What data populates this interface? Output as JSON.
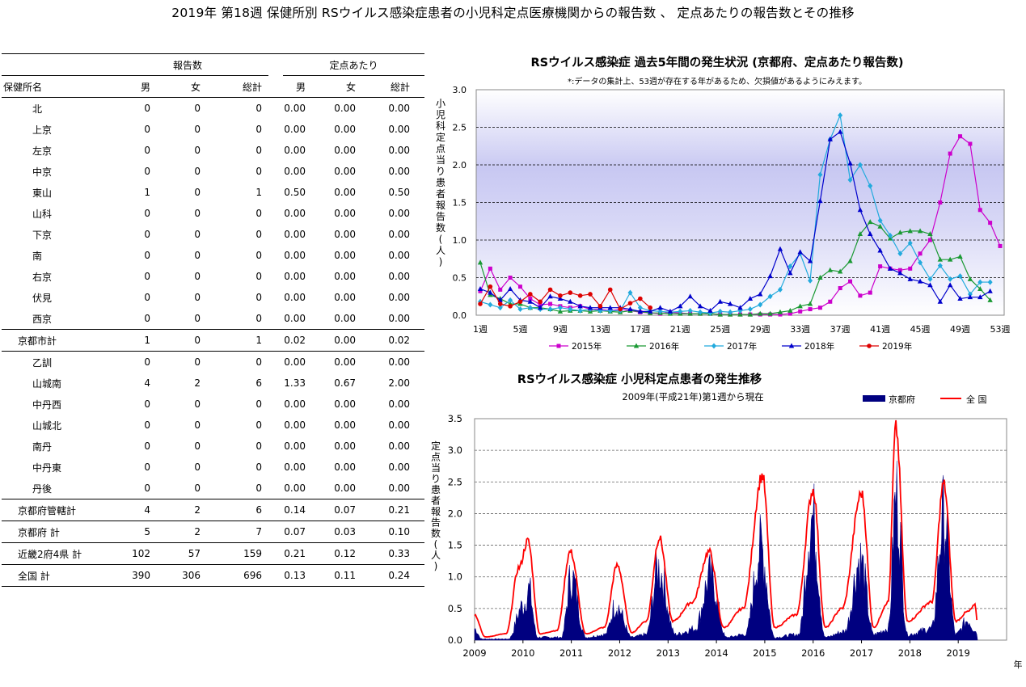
{
  "page_title": "2019年 第18週 保健所別 RSウイルス感染症患者の小児科定点医療機関からの報告数 、 定点あたりの報告数とその推移",
  "table": {
    "group_headers": [
      "報告数",
      "定点あたり"
    ],
    "col_name": "保健所名",
    "sub_headers": [
      "男",
      "女",
      "総計",
      "男",
      "女",
      "総計"
    ],
    "rows": [
      {
        "name": "北",
        "v": [
          "0",
          "0",
          "0",
          "0.00",
          "0.00",
          "0.00"
        ]
      },
      {
        "name": "上京",
        "v": [
          "0",
          "0",
          "0",
          "0.00",
          "0.00",
          "0.00"
        ]
      },
      {
        "name": "左京",
        "v": [
          "0",
          "0",
          "0",
          "0.00",
          "0.00",
          "0.00"
        ]
      },
      {
        "name": "中京",
        "v": [
          "0",
          "0",
          "0",
          "0.00",
          "0.00",
          "0.00"
        ]
      },
      {
        "name": "東山",
        "v": [
          "1",
          "0",
          "1",
          "0.50",
          "0.00",
          "0.50"
        ]
      },
      {
        "name": "山科",
        "v": [
          "0",
          "0",
          "0",
          "0.00",
          "0.00",
          "0.00"
        ]
      },
      {
        "name": "下京",
        "v": [
          "0",
          "0",
          "0",
          "0.00",
          "0.00",
          "0.00"
        ]
      },
      {
        "name": "南",
        "v": [
          "0",
          "0",
          "0",
          "0.00",
          "0.00",
          "0.00"
        ]
      },
      {
        "name": "右京",
        "v": [
          "0",
          "0",
          "0",
          "0.00",
          "0.00",
          "0.00"
        ]
      },
      {
        "name": "伏見",
        "v": [
          "0",
          "0",
          "0",
          "0.00",
          "0.00",
          "0.00"
        ]
      },
      {
        "name": "西京",
        "v": [
          "0",
          "0",
          "0",
          "0.00",
          "0.00",
          "0.00"
        ]
      },
      {
        "name": "京都市計",
        "v": [
          "1",
          "0",
          "1",
          "0.02",
          "0.00",
          "0.02"
        ],
        "total": true
      },
      {
        "name": "乙訓",
        "v": [
          "0",
          "0",
          "0",
          "0.00",
          "0.00",
          "0.00"
        ]
      },
      {
        "name": "山城南",
        "v": [
          "4",
          "2",
          "6",
          "1.33",
          "0.67",
          "2.00"
        ]
      },
      {
        "name": "中丹西",
        "v": [
          "0",
          "0",
          "0",
          "0.00",
          "0.00",
          "0.00"
        ]
      },
      {
        "name": "山城北",
        "v": [
          "0",
          "0",
          "0",
          "0.00",
          "0.00",
          "0.00"
        ]
      },
      {
        "name": "南丹",
        "v": [
          "0",
          "0",
          "0",
          "0.00",
          "0.00",
          "0.00"
        ]
      },
      {
        "name": "中丹東",
        "v": [
          "0",
          "0",
          "0",
          "0.00",
          "0.00",
          "0.00"
        ]
      },
      {
        "name": "丹後",
        "v": [
          "0",
          "0",
          "0",
          "0.00",
          "0.00",
          "0.00"
        ]
      },
      {
        "name": "京都府管轄計",
        "v": [
          "4",
          "2",
          "6",
          "0.14",
          "0.07",
          "0.21"
        ],
        "total": true
      },
      {
        "name": "京都府  計",
        "v": [
          "5",
          "2",
          "7",
          "0.07",
          "0.03",
          "0.10"
        ],
        "total": true
      },
      {
        "name": "近畿2府4県  計",
        "v": [
          "102",
          "57",
          "159",
          "0.21",
          "0.12",
          "0.33"
        ],
        "total": true
      },
      {
        "name": "全国  計",
        "v": [
          "390",
          "306",
          "696",
          "0.13",
          "0.11",
          "0.24"
        ],
        "total": true
      }
    ]
  },
  "chart_data": [
    {
      "type": "line",
      "title": "RSウイルス感染症  過去5年間の発生状況 (京都府、定点あたり報告数)",
      "subtitle": "*:データの集計上、53週が存在する年があるため、欠損値があるようにみえます。",
      "ylabel": "小児科定点当り患者報告数(人)",
      "ylim": [
        0,
        3.0
      ],
      "yticks": [
        "0.0",
        "0.5",
        "1.0",
        "1.5",
        "2.0",
        "2.5",
        "3.0"
      ],
      "xticks": [
        "1週",
        "5週",
        "9週",
        "13週",
        "17週",
        "21週",
        "25週",
        "29週",
        "33週",
        "37週",
        "41週",
        "45週",
        "49週",
        "53週"
      ],
      "legend_position": "bottom",
      "colors": {
        "2015年": "#cc00cc",
        "2016年": "#1a9933",
        "2017年": "#22aadd",
        "2018年": "#0000cc",
        "2019年": "#dd0000"
      },
      "series": [
        {
          "name": "2015年",
          "x": [
            1,
            2,
            3,
            4,
            5,
            6,
            7,
            8,
            9,
            10,
            11,
            12,
            13,
            14,
            15,
            16,
            17,
            18,
            19,
            20,
            21,
            22,
            23,
            24,
            25,
            26,
            27,
            28,
            29,
            30,
            31,
            32,
            33,
            34,
            35,
            36,
            37,
            38,
            39,
            40,
            41,
            42,
            43,
            44,
            45,
            46,
            47,
            48,
            49,
            50,
            51,
            52,
            53
          ],
          "values": [
            0.32,
            0.62,
            0.34,
            0.5,
            0.38,
            0.22,
            0.14,
            0.15,
            0.12,
            0.1,
            0.12,
            0.08,
            0.08,
            0.06,
            0.08,
            0.06,
            0.04,
            0.03,
            0.02,
            0.04,
            0.03,
            0.02,
            0.02,
            0.02,
            0.01,
            0.01,
            0.01,
            0.01,
            0.01,
            0.01,
            0.01,
            0.02,
            0.05,
            0.08,
            0.1,
            0.18,
            0.36,
            0.45,
            0.26,
            0.3,
            0.65,
            0.62,
            0.6,
            0.62,
            0.82,
            1.0,
            1.5,
            2.15,
            2.38,
            2.28,
            1.4,
            1.23,
            0.92
          ]
        },
        {
          "name": "2016年",
          "x": [
            1,
            2,
            3,
            4,
            5,
            6,
            7,
            8,
            9,
            10,
            11,
            12,
            13,
            14,
            15,
            16,
            17,
            18,
            19,
            20,
            21,
            22,
            23,
            24,
            25,
            26,
            27,
            28,
            29,
            30,
            31,
            32,
            33,
            34,
            35,
            36,
            37,
            38,
            39,
            40,
            41,
            42,
            43,
            44,
            45,
            46,
            47,
            48,
            49,
            50,
            51,
            52
          ],
          "values": [
            0.7,
            0.27,
            0.22,
            0.15,
            0.15,
            0.1,
            0.1,
            0.08,
            0.05,
            0.06,
            0.06,
            0.05,
            0.06,
            0.05,
            0.04,
            0.06,
            0.05,
            0.03,
            0.03,
            0.02,
            0.02,
            0.02,
            0.02,
            0.02,
            0.01,
            0.01,
            0.01,
            0.01,
            0.02,
            0.02,
            0.04,
            0.06,
            0.12,
            0.15,
            0.5,
            0.6,
            0.58,
            0.72,
            1.08,
            1.24,
            1.18,
            1.02,
            1.1,
            1.12,
            1.12,
            1.08,
            0.74,
            0.74,
            0.78,
            0.48,
            0.35,
            0.2
          ]
        },
        {
          "name": "2017年",
          "x": [
            1,
            2,
            3,
            4,
            5,
            6,
            7,
            8,
            9,
            10,
            11,
            12,
            13,
            14,
            15,
            16,
            17,
            18,
            19,
            20,
            21,
            22,
            23,
            24,
            25,
            26,
            27,
            28,
            29,
            30,
            31,
            32,
            33,
            34,
            35,
            36,
            37,
            38,
            39,
            40,
            41,
            42,
            43,
            44,
            45,
            46,
            47,
            48,
            49,
            50,
            51,
            52
          ],
          "values": [
            0.18,
            0.14,
            0.1,
            0.2,
            0.08,
            0.1,
            0.08,
            0.08,
            0.1,
            0.08,
            0.06,
            0.08,
            0.06,
            0.06,
            0.06,
            0.3,
            0.1,
            0.06,
            0.05,
            0.04,
            0.05,
            0.06,
            0.04,
            0.03,
            0.05,
            0.04,
            0.06,
            0.08,
            0.14,
            0.25,
            0.34,
            0.65,
            0.82,
            0.46,
            1.87,
            2.34,
            2.66,
            1.8,
            2.0,
            1.72,
            1.26,
            1.06,
            0.82,
            0.96,
            0.7,
            0.48,
            0.66,
            0.48,
            0.52,
            0.28,
            0.44,
            0.44
          ]
        },
        {
          "name": "2018年",
          "x": [
            1,
            2,
            3,
            4,
            5,
            6,
            7,
            8,
            9,
            10,
            11,
            12,
            13,
            14,
            15,
            16,
            17,
            18,
            19,
            20,
            21,
            22,
            23,
            24,
            25,
            26,
            27,
            28,
            29,
            30,
            31,
            32,
            33,
            34,
            35,
            36,
            37,
            38,
            39,
            40,
            41,
            42,
            43,
            44,
            45,
            46,
            47,
            48,
            49,
            50,
            51,
            52
          ],
          "values": [
            0.35,
            0.3,
            0.2,
            0.35,
            0.2,
            0.18,
            0.1,
            0.25,
            0.22,
            0.18,
            0.12,
            0.1,
            0.1,
            0.1,
            0.1,
            0.08,
            0.05,
            0.05,
            0.1,
            0.05,
            0.12,
            0.25,
            0.12,
            0.06,
            0.18,
            0.15,
            0.1,
            0.22,
            0.28,
            0.52,
            0.88,
            0.56,
            0.84,
            0.72,
            1.52,
            2.34,
            2.44,
            2.02,
            1.4,
            1.08,
            0.86,
            0.62,
            0.56,
            0.48,
            0.45,
            0.4,
            0.18,
            0.4,
            0.22,
            0.24,
            0.24,
            0.32
          ]
        },
        {
          "name": "2019年",
          "x": [
            1,
            2,
            3,
            4,
            5,
            6,
            7,
            8,
            9,
            10,
            11,
            12,
            13,
            14,
            15,
            16,
            17,
            18
          ],
          "values": [
            0.15,
            0.38,
            0.15,
            0.12,
            0.18,
            0.28,
            0.18,
            0.34,
            0.26,
            0.3,
            0.26,
            0.28,
            0.12,
            0.34,
            0.08,
            0.16,
            0.22,
            0.1
          ]
        }
      ]
    },
    {
      "type": "area",
      "title": "RSウイルス感染症  小児科定点患者の発生推移",
      "subtitle": "2009年(平成21年)第1週から現在",
      "ylabel": "定点当り患者報告数(人)",
      "xlabel": "年",
      "ylim": [
        0,
        3.5
      ],
      "yticks": [
        "0.0",
        "0.5",
        "1.0",
        "1.5",
        "2.0",
        "2.5",
        "3.0",
        "3.5"
      ],
      "xlim": [
        2009,
        2020.0
      ],
      "xticks": [
        "2009",
        "2010",
        "2011",
        "2012",
        "2013",
        "2014",
        "2015",
        "2016",
        "2017",
        "2018",
        "2019"
      ],
      "legend_position": "top-right",
      "colors": {
        "京都府": "#000080",
        "全 国": "#ff0000"
      },
      "legend": [
        "京都府",
        "全 国"
      ],
      "national_peaks": [
        {
          "x": 2009.0,
          "y": 0.4
        },
        {
          "x": 2009.22,
          "y": 0.05
        },
        {
          "x": 2009.65,
          "y": 0.1
        },
        {
          "x": 2009.92,
          "y": 1.15
        },
        {
          "x": 2010.1,
          "y": 1.57
        },
        {
          "x": 2010.35,
          "y": 0.1
        },
        {
          "x": 2010.7,
          "y": 0.15
        },
        {
          "x": 2010.98,
          "y": 1.4
        },
        {
          "x": 2011.3,
          "y": 0.1
        },
        {
          "x": 2011.68,
          "y": 0.2
        },
        {
          "x": 2011.95,
          "y": 1.18
        },
        {
          "x": 2012.25,
          "y": 0.12
        },
        {
          "x": 2012.55,
          "y": 0.3
        },
        {
          "x": 2012.82,
          "y": 1.62
        },
        {
          "x": 2013.1,
          "y": 0.3
        },
        {
          "x": 2013.5,
          "y": 0.6
        },
        {
          "x": 2013.85,
          "y": 1.4
        },
        {
          "x": 2014.15,
          "y": 0.2
        },
        {
          "x": 2014.55,
          "y": 0.5
        },
        {
          "x": 2014.95,
          "y": 2.6
        },
        {
          "x": 2015.2,
          "y": 0.2
        },
        {
          "x": 2015.65,
          "y": 0.4
        },
        {
          "x": 2016.0,
          "y": 2.37
        },
        {
          "x": 2016.25,
          "y": 0.2
        },
        {
          "x": 2016.6,
          "y": 0.5
        },
        {
          "x": 2017.0,
          "y": 2.32
        },
        {
          "x": 2017.25,
          "y": 0.2
        },
        {
          "x": 2017.55,
          "y": 0.6
        },
        {
          "x": 2017.71,
          "y": 3.35
        },
        {
          "x": 2017.95,
          "y": 0.3
        },
        {
          "x": 2018.45,
          "y": 0.6
        },
        {
          "x": 2018.7,
          "y": 2.47
        },
        {
          "x": 2018.95,
          "y": 0.3
        },
        {
          "x": 2019.2,
          "y": 0.45
        },
        {
          "x": 2019.35,
          "y": 0.55
        },
        {
          "x": 2019.4,
          "y": 0.25
        }
      ],
      "kyoto_peaks": [
        {
          "x": 2009.0,
          "y": 0.2
        },
        {
          "x": 2009.15,
          "y": 0.02
        },
        {
          "x": 2009.7,
          "y": 0.02
        },
        {
          "x": 2010.0,
          "y": 0.6
        },
        {
          "x": 2010.12,
          "y": 0.88
        },
        {
          "x": 2010.3,
          "y": 0.05
        },
        {
          "x": 2010.8,
          "y": 0.05
        },
        {
          "x": 2011.0,
          "y": 1.1
        },
        {
          "x": 2011.3,
          "y": 0.05
        },
        {
          "x": 2011.7,
          "y": 0.1
        },
        {
          "x": 2011.92,
          "y": 0.62
        },
        {
          "x": 2012.25,
          "y": 0.05
        },
        {
          "x": 2012.55,
          "y": 0.1
        },
        {
          "x": 2012.8,
          "y": 1.25
        },
        {
          "x": 2013.15,
          "y": 0.1
        },
        {
          "x": 2013.55,
          "y": 0.2
        },
        {
          "x": 2013.88,
          "y": 1.12
        },
        {
          "x": 2014.2,
          "y": 0.05
        },
        {
          "x": 2014.6,
          "y": 0.1
        },
        {
          "x": 2014.92,
          "y": 1.62
        },
        {
          "x": 2015.2,
          "y": 0.05
        },
        {
          "x": 2015.7,
          "y": 0.1
        },
        {
          "x": 2015.98,
          "y": 2.15
        },
        {
          "x": 2016.25,
          "y": 0.05
        },
        {
          "x": 2016.65,
          "y": 0.15
        },
        {
          "x": 2016.97,
          "y": 1.4
        },
        {
          "x": 2017.25,
          "y": 0.1
        },
        {
          "x": 2017.55,
          "y": 0.2
        },
        {
          "x": 2017.72,
          "y": 2.5
        },
        {
          "x": 2017.95,
          "y": 0.1
        },
        {
          "x": 2018.45,
          "y": 0.2
        },
        {
          "x": 2018.7,
          "y": 2.15
        },
        {
          "x": 2018.95,
          "y": 0.1
        },
        {
          "x": 2019.2,
          "y": 0.35
        },
        {
          "x": 2019.33,
          "y": 0.2
        },
        {
          "x": 2019.4,
          "y": 0.1
        }
      ]
    }
  ]
}
